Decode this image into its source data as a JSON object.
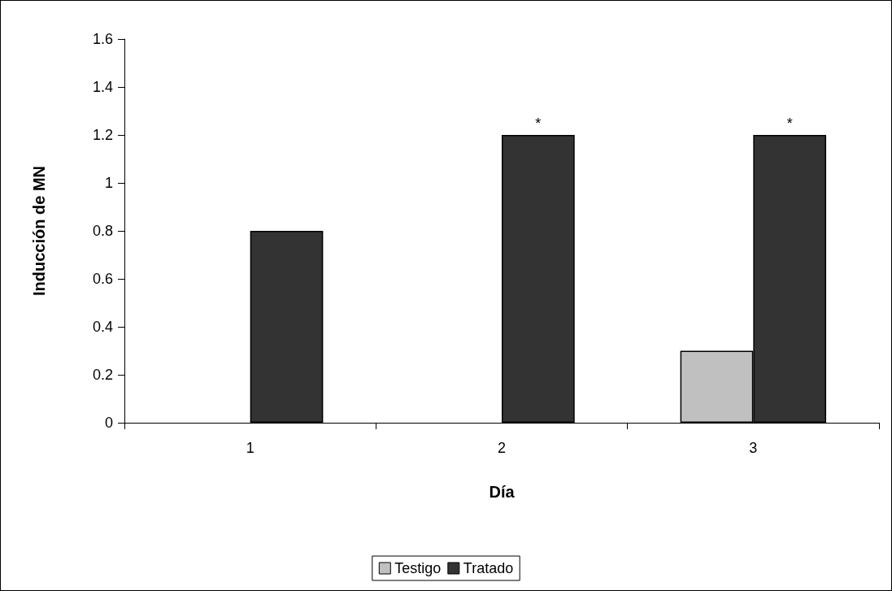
{
  "chart_data": {
    "type": "bar",
    "xlabel": "Día",
    "ylabel": "Inducción de MN",
    "categories": [
      "1",
      "2",
      "3"
    ],
    "series": [
      {
        "name": "Testigo",
        "color": "#c0c0c0",
        "values": [
          0,
          0,
          0.3
        ]
      },
      {
        "name": "Tratado",
        "color": "#333333",
        "values": [
          0.8,
          1.2,
          1.2
        ]
      }
    ],
    "ylim": [
      0,
      1.6
    ],
    "yticks": [
      0,
      0.2,
      0.4,
      0.6,
      0.8,
      1,
      1.2,
      1.4,
      1.6
    ],
    "grid": false,
    "legend": "bottom",
    "annotations": [
      {
        "text": "*",
        "x": "2",
        "y": 1.2
      },
      {
        "text": "*",
        "x": "3",
        "y": 1.2
      }
    ]
  }
}
